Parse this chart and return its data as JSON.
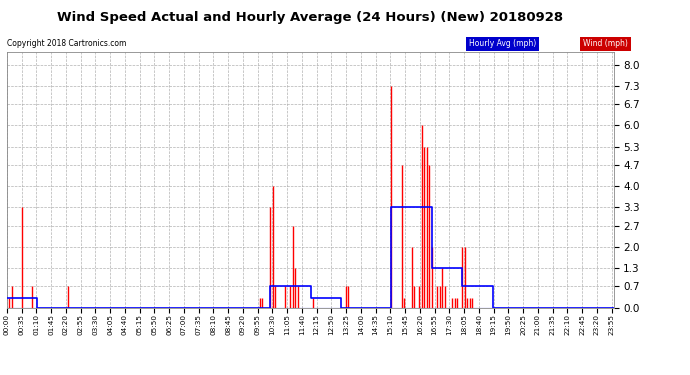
{
  "title": "Wind Speed Actual and Hourly Average (24 Hours) (New) 20180928",
  "copyright": "Copyright 2018 Cartronics.com",
  "yticks": [
    0.0,
    0.7,
    1.3,
    2.0,
    2.7,
    3.3,
    4.0,
    4.7,
    5.3,
    6.0,
    6.7,
    7.3,
    8.0
  ],
  "ylim": [
    0.0,
    8.4
  ],
  "background_color": "#ffffff",
  "grid_color": "#aaaaaa",
  "wind_color": "#ff0000",
  "avg_color": "#0000ff",
  "legend_avg_bg": "#0000cc",
  "legend_wind_bg": "#cc0000",
  "wind_data": [
    0.0,
    0.3,
    0.7,
    0.0,
    0.0,
    0.0,
    3.3,
    0.0,
    0.0,
    0.0,
    0.7,
    0.0,
    0.0,
    0.0,
    0.0,
    0.0,
    0.0,
    0.0,
    0.0,
    0.0,
    0.0,
    0.0,
    0.0,
    0.0,
    0.7,
    0.0,
    0.0,
    0.0,
    0.0,
    0.0,
    0.0,
    0.0,
    0.0,
    0.0,
    0.0,
    0.0,
    0.0,
    0.0,
    0.0,
    0.0,
    0.0,
    0.0,
    0.0,
    0.0,
    0.0,
    0.0,
    0.0,
    0.0,
    0.0,
    0.0,
    0.0,
    0.0,
    0.0,
    0.0,
    0.0,
    0.0,
    0.0,
    0.0,
    0.0,
    0.0,
    0.0,
    0.0,
    0.0,
    0.0,
    0.0,
    0.0,
    0.0,
    0.0,
    0.0,
    0.0,
    0.0,
    0.0,
    0.0,
    0.0,
    0.0,
    0.0,
    0.0,
    0.0,
    0.0,
    0.0,
    0.0,
    0.0,
    0.0,
    0.0,
    0.0,
    0.0,
    0.0,
    0.0,
    0.0,
    0.0,
    0.0,
    0.0,
    0.0,
    0.0,
    0.0,
    0.0,
    0.0,
    0.0,
    0.0,
    0.0,
    0.3,
    0.3,
    0.0,
    0.0,
    3.3,
    4.0,
    0.7,
    0.0,
    0.0,
    0.0,
    0.7,
    0.0,
    0.7,
    2.7,
    1.3,
    0.7,
    0.0,
    0.0,
    0.0,
    0.0,
    0.0,
    0.3,
    0.0,
    0.0,
    0.0,
    0.0,
    0.0,
    0.0,
    0.0,
    0.0,
    0.0,
    0.0,
    0.0,
    0.0,
    0.7,
    0.7,
    0.0,
    0.0,
    0.0,
    0.0,
    0.0,
    0.0,
    0.0,
    0.0,
    0.0,
    0.0,
    0.0,
    0.0,
    0.0,
    0.0,
    0.0,
    0.0,
    7.3,
    0.0,
    0.0,
    0.0,
    4.7,
    0.3,
    0.0,
    0.0,
    2.0,
    0.7,
    0.0,
    0.7,
    6.0,
    5.3,
    5.3,
    4.7,
    2.0,
    0.0,
    0.7,
    0.7,
    1.3,
    0.7,
    0.0,
    0.0,
    0.3,
    0.3,
    0.3,
    0.0,
    2.0,
    2.0,
    0.3,
    0.3,
    0.3,
    0.0,
    0.0,
    0.0,
    0.0,
    0.0,
    0.0,
    0.0,
    0.0,
    0.0,
    0.0,
    0.0,
    0.0,
    0.0,
    0.0,
    0.0,
    0.0,
    0.0,
    0.0,
    0.0,
    0.0,
    0.0,
    0.0,
    0.0,
    0.0,
    0.0,
    0.0,
    0.0,
    0.0,
    0.0,
    0.0,
    0.0,
    0.0,
    0.0,
    0.0,
    0.0,
    0.0,
    0.0,
    0.0,
    0.0,
    0.0,
    0.0,
    0.0,
    0.0,
    0.0,
    0.0,
    0.0,
    0.0,
    0.0,
    0.0,
    0.0,
    0.0,
    0.0,
    0.0,
    0.0,
    0.0
  ],
  "avg_data": [
    0.3,
    0.3,
    0.3,
    0.3,
    0.3,
    0.3,
    0.3,
    0.3,
    0.3,
    0.3,
    0.3,
    0.3,
    0.0,
    0.0,
    0.0,
    0.0,
    0.0,
    0.0,
    0.0,
    0.0,
    0.0,
    0.0,
    0.0,
    0.0,
    0.0,
    0.0,
    0.0,
    0.0,
    0.0,
    0.0,
    0.0,
    0.0,
    0.0,
    0.0,
    0.0,
    0.0,
    0.0,
    0.0,
    0.0,
    0.0,
    0.0,
    0.0,
    0.0,
    0.0,
    0.0,
    0.0,
    0.0,
    0.0,
    0.0,
    0.0,
    0.0,
    0.0,
    0.0,
    0.0,
    0.0,
    0.0,
    0.0,
    0.0,
    0.0,
    0.0,
    0.0,
    0.0,
    0.0,
    0.0,
    0.0,
    0.0,
    0.0,
    0.0,
    0.0,
    0.0,
    0.0,
    0.0,
    0.0,
    0.0,
    0.0,
    0.0,
    0.0,
    0.0,
    0.0,
    0.0,
    0.0,
    0.0,
    0.0,
    0.0,
    0.0,
    0.0,
    0.0,
    0.0,
    0.0,
    0.0,
    0.0,
    0.0,
    0.0,
    0.0,
    0.0,
    0.0,
    0.0,
    0.0,
    0.0,
    0.0,
    0.0,
    0.0,
    0.0,
    0.0,
    0.7,
    0.7,
    0.7,
    0.7,
    0.7,
    0.7,
    0.7,
    0.7,
    0.7,
    0.7,
    0.7,
    0.7,
    0.7,
    0.7,
    0.7,
    0.7,
    0.3,
    0.3,
    0.3,
    0.3,
    0.3,
    0.3,
    0.3,
    0.3,
    0.3,
    0.3,
    0.3,
    0.3,
    0.0,
    0.0,
    0.0,
    0.0,
    0.0,
    0.0,
    0.0,
    0.0,
    0.0,
    0.0,
    0.0,
    0.0,
    0.0,
    0.0,
    0.0,
    0.0,
    0.0,
    0.0,
    0.0,
    0.0,
    3.3,
    3.3,
    3.3,
    3.3,
    3.3,
    3.3,
    3.3,
    3.3,
    3.3,
    3.3,
    3.3,
    3.3,
    3.3,
    3.3,
    3.3,
    3.3,
    1.3,
    1.3,
    1.3,
    1.3,
    1.3,
    1.3,
    1.3,
    1.3,
    1.3,
    1.3,
    1.3,
    1.3,
    0.7,
    0.7,
    0.7,
    0.7,
    0.7,
    0.7,
    0.7,
    0.7,
    0.7,
    0.7,
    0.7,
    0.7,
    0.0,
    0.0,
    0.0,
    0.0,
    0.0,
    0.0,
    0.0,
    0.0,
    0.0,
    0.0,
    0.0,
    0.0,
    0.0,
    0.0,
    0.0,
    0.0,
    0.0,
    0.0,
    0.0,
    0.0,
    0.0,
    0.0,
    0.0,
    0.0,
    0.0,
    0.0,
    0.0,
    0.0,
    0.0,
    0.0,
    0.0,
    0.0,
    0.0,
    0.0,
    0.0,
    0.0,
    0.0,
    0.0,
    0.0,
    0.0,
    0.0,
    0.0,
    0.0,
    0.0,
    0.0,
    0.0,
    0.0,
    0.0
  ],
  "xtick_labels": [
    "00:00",
    "00:35",
    "01:10",
    "01:45",
    "02:20",
    "02:55",
    "03:30",
    "04:05",
    "04:40",
    "05:15",
    "05:50",
    "06:25",
    "07:00",
    "07:35",
    "08:10",
    "08:45",
    "09:20",
    "09:55",
    "10:30",
    "11:05",
    "11:40",
    "12:15",
    "12:50",
    "13:25",
    "14:00",
    "14:35",
    "15:10",
    "15:45",
    "16:20",
    "16:55",
    "17:30",
    "18:05",
    "18:40",
    "19:15",
    "19:50",
    "20:25",
    "21:00",
    "21:35",
    "22:10",
    "22:45",
    "23:20",
    "23:55"
  ]
}
